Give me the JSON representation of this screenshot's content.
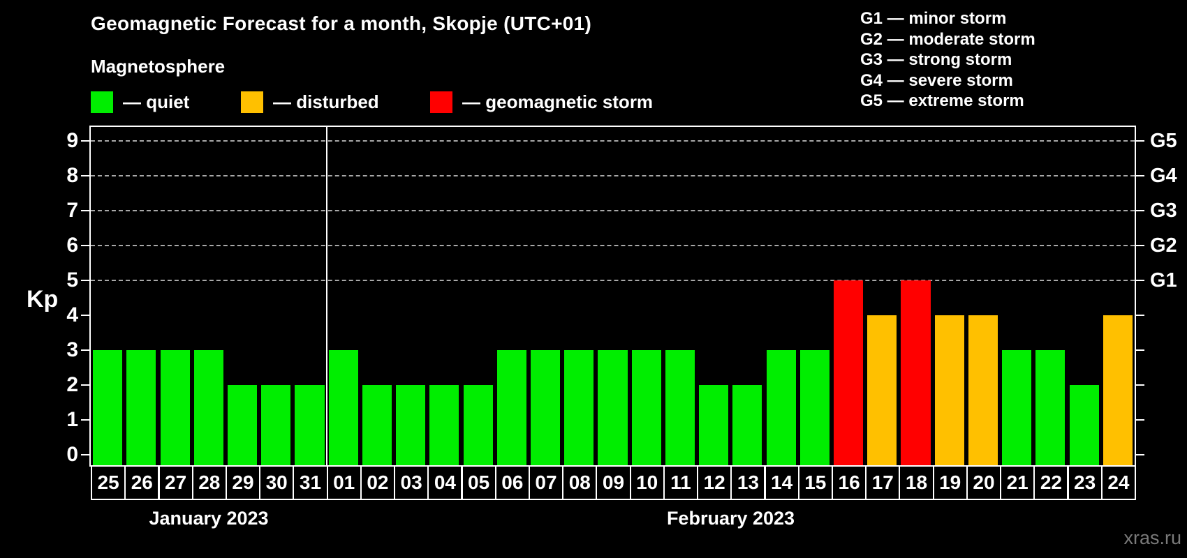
{
  "header": {
    "title": "Geomagnetic Forecast for a month, Skopje (UTC+01)",
    "subtitle": "Magnetosphere"
  },
  "legend": {
    "items": [
      {
        "id": "quiet",
        "label": "— quiet",
        "color": "#00ee00"
      },
      {
        "id": "disturbed",
        "label": "— disturbed",
        "color": "#ffc000"
      },
      {
        "id": "storm",
        "label": "— geomagnetic storm",
        "color": "#ff0000"
      }
    ]
  },
  "g_scale_legend": {
    "items": [
      "G1 — minor storm",
      "G2 — moderate storm",
      "G3 — strong storm",
      "G4 — severe storm",
      "G5 — extreme storm"
    ]
  },
  "chart_data": {
    "type": "bar",
    "title": "Geomagnetic Forecast for a month, Skopje (UTC+01)",
    "ylabel": "Kp",
    "ylim": [
      0,
      9
    ],
    "yticks": [
      0,
      1,
      2,
      3,
      4,
      5,
      6,
      7,
      8,
      9
    ],
    "gridlines_at_kp": [
      5,
      6,
      7,
      8,
      9
    ],
    "grid": "dashed, horizontal only at Kp 5-9",
    "right_axis": [
      {
        "kp": 5,
        "label": "G1"
      },
      {
        "kp": 6,
        "label": "G2"
      },
      {
        "kp": 7,
        "label": "G3"
      },
      {
        "kp": 8,
        "label": "G4"
      },
      {
        "kp": 9,
        "label": "G5"
      }
    ],
    "level_colors": {
      "quiet": "#00ee00",
      "disturbed": "#ffc000",
      "storm": "#ff0000"
    },
    "months": [
      {
        "label": "January 2023",
        "days": 7
      },
      {
        "label": "February 2023",
        "days": 24
      }
    ],
    "bars": [
      {
        "day": "25",
        "kp": 3,
        "level": "quiet"
      },
      {
        "day": "26",
        "kp": 3,
        "level": "quiet"
      },
      {
        "day": "27",
        "kp": 3,
        "level": "quiet"
      },
      {
        "day": "28",
        "kp": 3,
        "level": "quiet"
      },
      {
        "day": "29",
        "kp": 2,
        "level": "quiet"
      },
      {
        "day": "30",
        "kp": 2,
        "level": "quiet"
      },
      {
        "day": "31",
        "kp": 2,
        "level": "quiet"
      },
      {
        "day": "01",
        "kp": 3,
        "level": "quiet"
      },
      {
        "day": "02",
        "kp": 2,
        "level": "quiet"
      },
      {
        "day": "03",
        "kp": 2,
        "level": "quiet"
      },
      {
        "day": "04",
        "kp": 2,
        "level": "quiet"
      },
      {
        "day": "05",
        "kp": 2,
        "level": "quiet"
      },
      {
        "day": "06",
        "kp": 3,
        "level": "quiet"
      },
      {
        "day": "07",
        "kp": 3,
        "level": "quiet"
      },
      {
        "day": "08",
        "kp": 3,
        "level": "quiet"
      },
      {
        "day": "09",
        "kp": 3,
        "level": "quiet"
      },
      {
        "day": "10",
        "kp": 3,
        "level": "quiet"
      },
      {
        "day": "11",
        "kp": 3,
        "level": "quiet"
      },
      {
        "day": "12",
        "kp": 2,
        "level": "quiet"
      },
      {
        "day": "13",
        "kp": 2,
        "level": "quiet"
      },
      {
        "day": "14",
        "kp": 3,
        "level": "quiet"
      },
      {
        "day": "15",
        "kp": 3,
        "level": "quiet"
      },
      {
        "day": "16",
        "kp": 5,
        "level": "storm"
      },
      {
        "day": "17",
        "kp": 4,
        "level": "disturbed"
      },
      {
        "day": "18",
        "kp": 5,
        "level": "storm"
      },
      {
        "day": "19",
        "kp": 4,
        "level": "disturbed"
      },
      {
        "day": "20",
        "kp": 4,
        "level": "disturbed"
      },
      {
        "day": "21",
        "kp": 3,
        "level": "quiet"
      },
      {
        "day": "22",
        "kp": 3,
        "level": "quiet"
      },
      {
        "day": "23",
        "kp": 2,
        "level": "quiet"
      },
      {
        "day": "24",
        "kp": 4,
        "level": "disturbed"
      }
    ]
  },
  "footer": {
    "watermark": "xras.ru"
  }
}
